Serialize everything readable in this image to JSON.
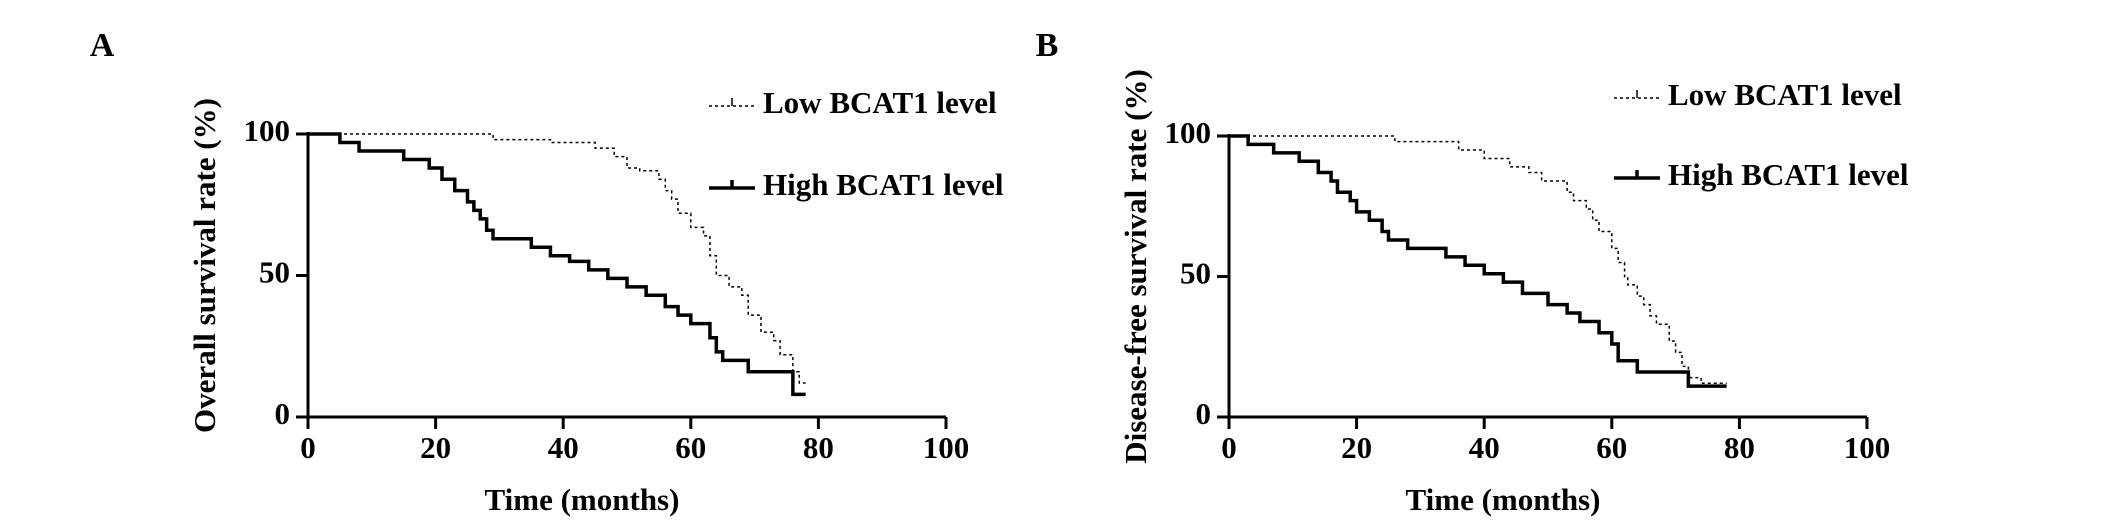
{
  "chart_data": [
    {
      "type": "step",
      "panel_label": "A",
      "xlabel": "Time (months)",
      "ylabel": "Overall survival rate (%)",
      "xlim": [
        0,
        100
      ],
      "ylim": [
        0,
        100
      ],
      "xticks": [
        0,
        20,
        40,
        60,
        80,
        100
      ],
      "yticks": [
        0,
        50,
        100
      ],
      "series": [
        {
          "name": "Low BCAT1 level",
          "color": "#000000",
          "line_style": "dotted",
          "x": [
            0,
            29,
            38,
            45,
            48,
            50,
            52,
            55,
            56,
            57,
            58,
            60,
            62,
            63,
            64,
            66,
            68,
            69,
            71,
            73,
            74,
            76,
            77,
            78
          ],
          "values": [
            100,
            98,
            97,
            95,
            92,
            88,
            87,
            84,
            80,
            77,
            72,
            67,
            64,
            57,
            50,
            46,
            43,
            36,
            30,
            27,
            22,
            16,
            12,
            12
          ]
        },
        {
          "name": "High BCAT1 level",
          "color": "#000000",
          "line_style": "solid",
          "x": [
            0,
            5,
            8,
            15,
            19,
            21,
            23,
            25,
            26,
            27,
            28,
            29,
            35,
            38,
            41,
            44,
            47,
            50,
            53,
            56,
            58,
            60,
            63,
            64,
            65,
            69,
            76,
            78
          ],
          "values": [
            100,
            97,
            94,
            91,
            88,
            84,
            80,
            76,
            73,
            70,
            66,
            63,
            60,
            57,
            55,
            52,
            49,
            46,
            43,
            39,
            36,
            33,
            28,
            23,
            20,
            16,
            8,
            8
          ]
        }
      ]
    },
    {
      "type": "step",
      "panel_label": "B",
      "xlabel": "Time (months)",
      "ylabel": "Disease-free survival rate (%)",
      "xlim": [
        0,
        100
      ],
      "ylim": [
        0,
        100
      ],
      "xticks": [
        0,
        20,
        40,
        60,
        80,
        100
      ],
      "yticks": [
        0,
        50,
        100
      ],
      "series": [
        {
          "name": "Low BCAT1 level",
          "color": "#000000",
          "line_style": "dotted",
          "x": [
            0,
            26,
            36,
            40,
            44,
            47,
            49,
            53,
            54,
            56,
            57,
            58,
            60,
            61,
            62,
            62.5,
            64,
            65,
            66,
            67,
            69,
            70,
            71,
            72,
            74,
            78
          ],
          "values": [
            100,
            98,
            95,
            92,
            89,
            87,
            84,
            80,
            77,
            74,
            70,
            66,
            60,
            55,
            50,
            47,
            43,
            40,
            36,
            33,
            27,
            23,
            18,
            14,
            12,
            12
          ]
        },
        {
          "name": "High BCAT1 level",
          "color": "#000000",
          "line_style": "solid",
          "x": [
            0,
            3,
            7,
            11,
            14,
            16,
            17,
            19,
            20,
            22,
            24,
            25,
            28,
            34,
            37,
            40,
            43,
            46,
            50,
            53,
            55,
            58,
            60,
            61,
            64,
            72,
            78
          ],
          "values": [
            100,
            97,
            94,
            91,
            87,
            84,
            80,
            77,
            73,
            70,
            66,
            63,
            60,
            57,
            54,
            51,
            48,
            44,
            40,
            37,
            34,
            30,
            26,
            20,
            16,
            11,
            11
          ]
        }
      ]
    }
  ]
}
